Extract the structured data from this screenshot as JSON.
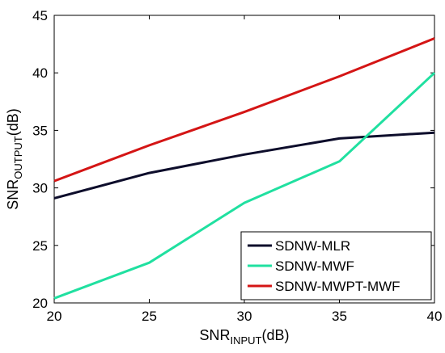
{
  "chart_data": {
    "type": "line",
    "xlabel_main": "SNR",
    "xlabel_sub": "INPUT",
    "xlabel_unit": "(dB)",
    "ylabel_main": "SNR",
    "ylabel_sub": "OUTPUT",
    "ylabel_unit": "(dB)",
    "xlim": [
      20,
      40
    ],
    "ylim": [
      20,
      45
    ],
    "xticks": [
      "20",
      "25",
      "30",
      "35",
      "40"
    ],
    "yticks": [
      "20",
      "25",
      "30",
      "35",
      "40",
      "45"
    ],
    "grid": false,
    "legend_position": "bottom-right",
    "x": [
      20,
      25,
      30,
      35,
      40
    ],
    "series": [
      {
        "name": "SDNW-MLR",
        "color": "#0d0d2b",
        "values": [
          29.1,
          31.3,
          32.9,
          34.3,
          34.8
        ]
      },
      {
        "name": "SDNW-MWF",
        "color": "#20e0a0",
        "values": [
          20.4,
          23.5,
          28.7,
          32.3,
          40.0
        ]
      },
      {
        "name": "SDNW-MWPT-MWF",
        "color": "#d41515",
        "values": [
          30.6,
          33.7,
          36.6,
          39.7,
          43.0
        ]
      }
    ]
  }
}
